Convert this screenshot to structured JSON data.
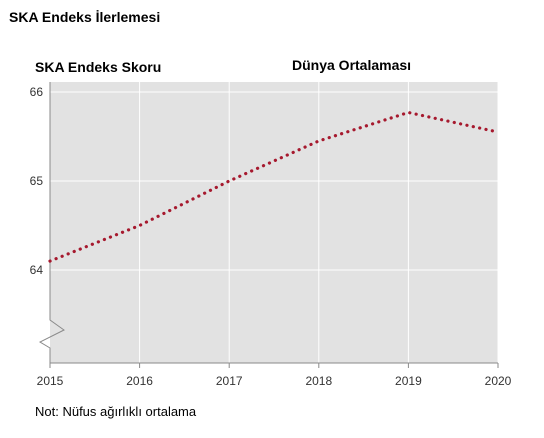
{
  "page": {
    "title": "SKA Endeks İlerlemesi",
    "footnote": "Not: Nüfus ağırlıklı ortalama"
  },
  "chart_data": {
    "type": "line",
    "title": "SKA Endeks İlerlemesi",
    "ylabel": "SKA Endeks Skoru",
    "xlabel": "",
    "x": [
      2015,
      2016,
      2017,
      2018,
      2019,
      2020
    ],
    "series": [
      {
        "name": "Dünya Ortalaması",
        "values": [
          64.1,
          64.5,
          65.0,
          65.45,
          65.77,
          65.55
        ],
        "color": "#a6192e",
        "style": "dotted"
      }
    ],
    "x_ticks": [
      "2015",
      "2016",
      "2017",
      "2018",
      "2019",
      "2020"
    ],
    "y_ticks": [
      "64",
      "65",
      "66"
    ],
    "ylim": [
      63,
      66
    ],
    "xlim": [
      2015,
      2020
    ],
    "axis_break": "y-bottom",
    "grid": "horizontal",
    "plot_background": "#e2e2e2"
  }
}
